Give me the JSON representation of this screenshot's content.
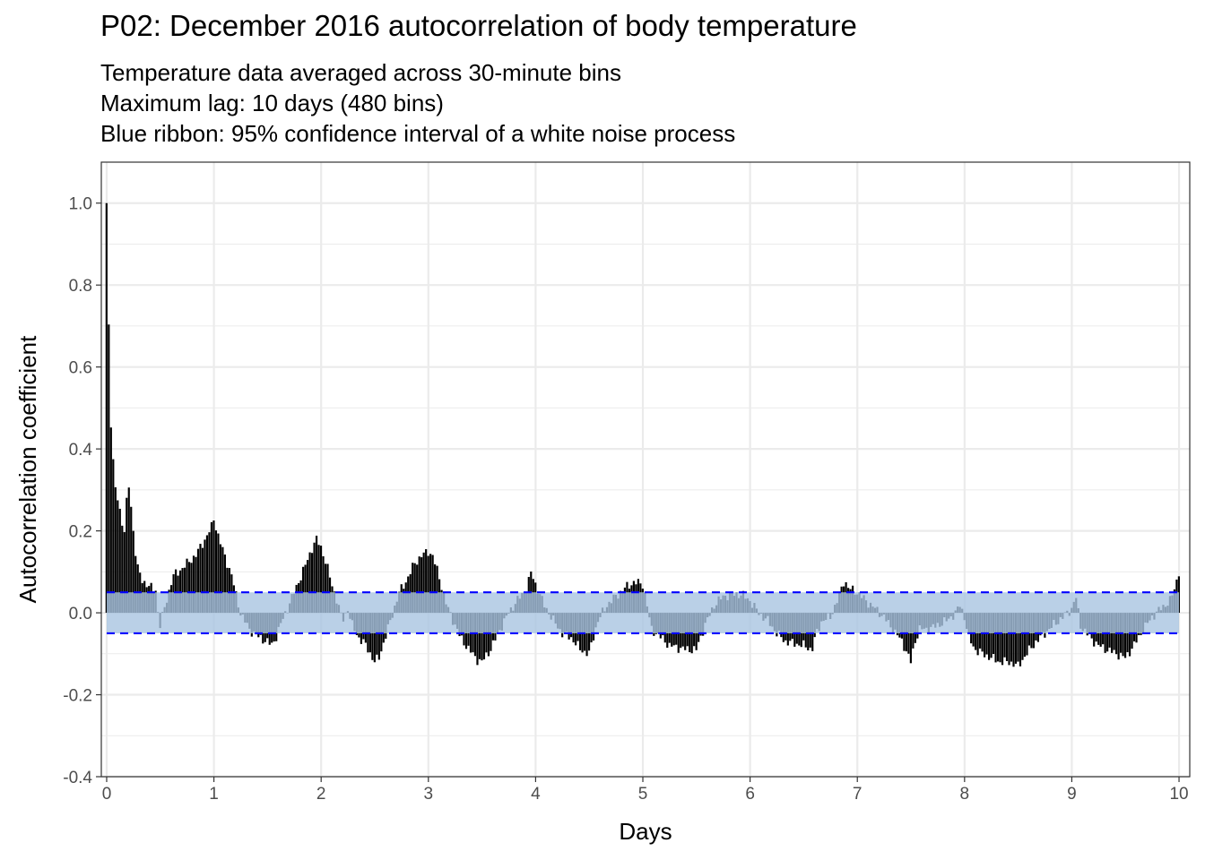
{
  "chart_data": {
    "type": "bar",
    "title": "P02: December 2016 autocorrelation of body temperature",
    "subtitle_lines": [
      "Temperature data averaged across 30-minute bins",
      "Maximum lag: 10 days (480 bins)",
      "Blue ribbon: 95% confidence interval of a white noise process"
    ],
    "xlabel": "Days",
    "ylabel": "Autocorrelation coefficient",
    "xlim": [
      -0.05,
      10.1
    ],
    "ylim": [
      -0.4,
      1.1
    ],
    "x_ticks": [
      0,
      1,
      2,
      3,
      4,
      5,
      6,
      7,
      8,
      9,
      10
    ],
    "y_ticks": [
      -0.4,
      -0.2,
      0.0,
      0.2,
      0.4,
      0.6,
      0.8,
      1.0
    ],
    "y_tick_labels": [
      "-0.4",
      "-0.2",
      "0.0",
      "0.2",
      "0.4",
      "0.6",
      "0.8",
      "1.0"
    ],
    "bin_width_days": 0.0208333,
    "confidence_band": [
      -0.05,
      0.05
    ],
    "grid": true,
    "legend": "none",
    "colors": {
      "bar": "#000000",
      "ribbon": "#a9c4e1",
      "ribbon_line": "#0000ff",
      "grid": "#ebebeb",
      "panel_border": "#333333"
    },
    "profile": [
      [
        0.0,
        1.0
      ],
      [
        0.021,
        0.7
      ],
      [
        0.042,
        0.46
      ],
      [
        0.062,
        0.37
      ],
      [
        0.083,
        0.3
      ],
      [
        0.104,
        0.28
      ],
      [
        0.125,
        0.25
      ],
      [
        0.146,
        0.22
      ],
      [
        0.167,
        0.2
      ],
      [
        0.188,
        0.27
      ],
      [
        0.208,
        0.31
      ],
      [
        0.229,
        0.26
      ],
      [
        0.25,
        0.2
      ],
      [
        0.27,
        0.15
      ],
      [
        0.29,
        0.11
      ],
      [
        0.33,
        0.08
      ],
      [
        0.375,
        0.07
      ],
      [
        0.42,
        0.06
      ],
      [
        0.46,
        0.055
      ],
      [
        0.48,
        0.0
      ],
      [
        0.5,
        -0.03
      ],
      [
        0.54,
        0.01
      ],
      [
        0.58,
        0.05
      ],
      [
        0.62,
        0.09
      ],
      [
        0.67,
        0.1
      ],
      [
        0.75,
        0.12
      ],
      [
        0.83,
        0.14
      ],
      [
        0.92,
        0.18
      ],
      [
        0.98,
        0.21
      ],
      [
        1.0,
        0.23
      ],
      [
        1.04,
        0.19
      ],
      [
        1.1,
        0.14
      ],
      [
        1.17,
        0.09
      ],
      [
        1.21,
        0.04
      ],
      [
        1.25,
        0.0
      ],
      [
        1.33,
        -0.04
      ],
      [
        1.42,
        -0.06
      ],
      [
        1.5,
        -0.07
      ],
      [
        1.54,
        -0.08
      ],
      [
        1.58,
        -0.06
      ],
      [
        1.62,
        -0.03
      ],
      [
        1.67,
        0.0
      ],
      [
        1.75,
        0.05
      ],
      [
        1.83,
        0.1
      ],
      [
        1.92,
        0.16
      ],
      [
        1.96,
        0.18
      ],
      [
        2.0,
        0.16
      ],
      [
        2.05,
        0.12
      ],
      [
        2.1,
        0.07
      ],
      [
        2.15,
        0.03
      ],
      [
        2.2,
        -0.02
      ],
      [
        2.25,
        0.01
      ],
      [
        2.29,
        -0.03
      ],
      [
        2.35,
        -0.06
      ],
      [
        2.42,
        -0.08
      ],
      [
        2.5,
        -0.12
      ],
      [
        2.54,
        -0.11
      ],
      [
        2.6,
        -0.06
      ],
      [
        2.67,
        0.0
      ],
      [
        2.73,
        0.05
      ],
      [
        2.8,
        0.08
      ],
      [
        2.87,
        0.12
      ],
      [
        2.94,
        0.14
      ],
      [
        3.0,
        0.15
      ],
      [
        3.04,
        0.14
      ],
      [
        3.1,
        0.09
      ],
      [
        3.17,
        0.02
      ],
      [
        3.25,
        -0.03
      ],
      [
        3.3,
        -0.06
      ],
      [
        3.38,
        -0.09
      ],
      [
        3.46,
        -0.115
      ],
      [
        3.5,
        -0.12
      ],
      [
        3.58,
        -0.09
      ],
      [
        3.67,
        -0.04
      ],
      [
        3.75,
        0.0
      ],
      [
        3.83,
        0.03
      ],
      [
        3.92,
        0.06
      ],
      [
        3.96,
        0.1
      ],
      [
        4.0,
        0.07
      ],
      [
        4.08,
        0.02
      ],
      [
        4.17,
        -0.02
      ],
      [
        4.25,
        -0.05
      ],
      [
        4.33,
        -0.06
      ],
      [
        4.42,
        -0.09
      ],
      [
        4.5,
        -0.1
      ],
      [
        4.54,
        -0.06
      ],
      [
        4.58,
        -0.02
      ],
      [
        4.67,
        0.02
      ],
      [
        4.75,
        0.04
      ],
      [
        4.83,
        0.06
      ],
      [
        4.92,
        0.075
      ],
      [
        5.0,
        0.07
      ],
      [
        5.04,
        0.02
      ],
      [
        5.08,
        -0.04
      ],
      [
        5.17,
        -0.06
      ],
      [
        5.25,
        -0.08
      ],
      [
        5.33,
        -0.085
      ],
      [
        5.42,
        -0.09
      ],
      [
        5.5,
        -0.09
      ],
      [
        5.58,
        -0.03
      ],
      [
        5.67,
        0.02
      ],
      [
        5.75,
        0.04
      ],
      [
        5.83,
        0.045
      ],
      [
        5.92,
        0.045
      ],
      [
        6.0,
        0.03
      ],
      [
        6.08,
        0.0
      ],
      [
        6.17,
        -0.02
      ],
      [
        6.25,
        -0.05
      ],
      [
        6.33,
        -0.07
      ],
      [
        6.42,
        -0.075
      ],
      [
        6.5,
        -0.08
      ],
      [
        6.58,
        -0.09
      ],
      [
        6.62,
        -0.05
      ],
      [
        6.67,
        -0.02
      ],
      [
        6.75,
        -0.01
      ],
      [
        6.83,
        0.04
      ],
      [
        6.88,
        0.08
      ],
      [
        6.92,
        0.06
      ],
      [
        7.0,
        0.05
      ],
      [
        7.08,
        0.03
      ],
      [
        7.17,
        0.01
      ],
      [
        7.25,
        -0.01
      ],
      [
        7.33,
        -0.04
      ],
      [
        7.42,
        -0.07
      ],
      [
        7.5,
        -0.12
      ],
      [
        7.54,
        -0.07
      ],
      [
        7.58,
        -0.04
      ],
      [
        7.67,
        -0.04
      ],
      [
        7.75,
        -0.03
      ],
      [
        7.83,
        -0.02
      ],
      [
        7.92,
        0.0
      ],
      [
        7.96,
        0.02
      ],
      [
        8.0,
        -0.01
      ],
      [
        8.04,
        -0.06
      ],
      [
        8.1,
        -0.09
      ],
      [
        8.17,
        -0.1
      ],
      [
        8.25,
        -0.11
      ],
      [
        8.33,
        -0.12
      ],
      [
        8.42,
        -0.12
      ],
      [
        8.5,
        -0.13
      ],
      [
        8.58,
        -0.1
      ],
      [
        8.67,
        -0.07
      ],
      [
        8.75,
        -0.05
      ],
      [
        8.83,
        -0.03
      ],
      [
        8.92,
        -0.01
      ],
      [
        9.0,
        0.01
      ],
      [
        9.04,
        0.04
      ],
      [
        9.08,
        -0.03
      ],
      [
        9.17,
        -0.06
      ],
      [
        9.25,
        -0.08
      ],
      [
        9.33,
        -0.09
      ],
      [
        9.42,
        -0.1
      ],
      [
        9.5,
        -0.11
      ],
      [
        9.58,
        -0.08
      ],
      [
        9.67,
        -0.04
      ],
      [
        9.75,
        -0.01
      ],
      [
        9.83,
        0.01
      ],
      [
        9.92,
        0.03
      ],
      [
        9.96,
        0.06
      ],
      [
        10.0,
        0.1
      ]
    ]
  }
}
